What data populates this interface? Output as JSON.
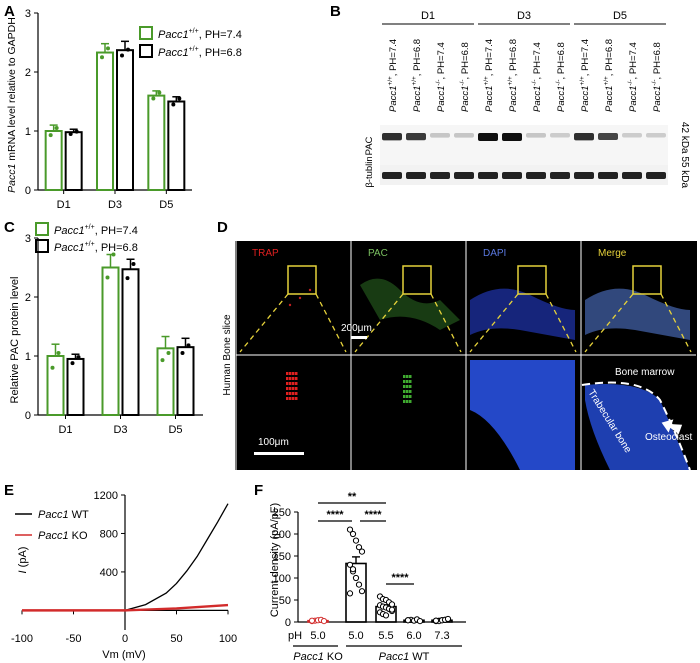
{
  "colors": {
    "green": "#4a9a2a",
    "black": "#000000",
    "red": "#d22b2b",
    "yellow": "#e6d23a",
    "trap_red": "#e02020",
    "pac_green": "#3faa30",
    "dapi_blue": "#2448c8"
  },
  "panel_letters": [
    "A",
    "B",
    "C",
    "D",
    "E",
    "F"
  ],
  "panelA": {
    "ylabel_italic": "Pacc1",
    "ylabel_rest": " mRNA level relative to GAPDH",
    "legend": [
      {
        "italic": "Pacc1",
        "sup": "+/+",
        "rest": ", PH=7.4"
      },
      {
        "italic": "Pacc1",
        "sup": "+/+",
        "rest": ", PH=6.8"
      }
    ]
  },
  "panelB": {
    "groups": [
      "D1",
      "D3",
      "D5"
    ],
    "lanes": [
      {
        "g": "Pacc1",
        "s": "+/+",
        "p": ", PH=7.4"
      },
      {
        "g": "Pacc1",
        "s": "+/+",
        "p": ", PH=6.8"
      },
      {
        "g": "Pacc1",
        "s": "-/-",
        "p": ", PH=7.4"
      },
      {
        "g": "Pacc1",
        "s": "-/-",
        "p": ", PH=6.8"
      },
      {
        "g": "Pacc1",
        "s": "+/+",
        "p": ", PH=7.4"
      },
      {
        "g": "Pacc1",
        "s": "+/+",
        "p": ", PH=6.8"
      },
      {
        "g": "Pacc1",
        "s": "-/-",
        "p": ", PH=7.4"
      },
      {
        "g": "Pacc1",
        "s": "-/-",
        "p": ", PH=6.8"
      },
      {
        "g": "Pacc1",
        "s": "+/+",
        "p": ", PH=7.4"
      },
      {
        "g": "Pacc1",
        "s": "+/+",
        "p": ", PH=6.8"
      },
      {
        "g": "Pacc1",
        "s": "-/-",
        "p": ", PH=7.4"
      },
      {
        "g": "Pacc1",
        "s": "-/-",
        "p": ", PH=6.8"
      }
    ],
    "row_labels": [
      "PAC",
      "β-tublin"
    ],
    "kda": [
      "42 kDa",
      "55 kDa"
    ],
    "pac_intensity": [
      0.85,
      0.8,
      0.15,
      0.15,
      1.0,
      1.0,
      0.15,
      0.12,
      0.85,
      0.75,
      0.12,
      0.12
    ]
  },
  "panelC": {
    "ylabel": "Relative PAC protein level",
    "legend": [
      {
        "italic": "Pacc1",
        "sup": "+/+",
        "rest": ", PH=7.4"
      },
      {
        "italic": "Pacc1",
        "sup": "+/+",
        "rest": ", PH=6.8"
      }
    ]
  },
  "panelD": {
    "channels": [
      "TRAP",
      "PAC",
      "DAPI",
      "Merge"
    ],
    "side_label": "Human Bone slice",
    "scale_top": "200μm",
    "scale_bottom": "100μm",
    "annotations": {
      "bone_marrow": "Bone marrow",
      "trabecular": "Trabecular bone",
      "osteoclast": "Osteoclast"
    }
  },
  "panelE": {
    "ylabel_italic": "I",
    "ylabel_rest": " (pA)",
    "xlabel": "Vm (mV)",
    "legend": [
      {
        "italic": "Pacc1",
        "rest": " WT"
      },
      {
        "italic": "Pacc1",
        "rest": " KO"
      }
    ]
  },
  "panelF": {
    "ylabel": "Current density (pA/pF)",
    "ph_label": "pH",
    "group_labels": [
      {
        "italic": "Pacc1",
        "rest": " KO"
      },
      {
        "italic": "Pacc1",
        "rest": " WT"
      }
    ],
    "sig": [
      "****",
      "**",
      "****",
      "****"
    ]
  },
  "chart_data": [
    {
      "type": "bar",
      "panel": "A",
      "categories": [
        "D1",
        "D3",
        "D5"
      ],
      "series": [
        {
          "name": "Pacc1+/+, PH=7.4",
          "values": [
            1.0,
            2.33,
            1.6
          ],
          "errors": [
            0.1,
            0.15,
            0.08
          ],
          "points": [
            [
              0.93,
              1.05
            ],
            [
              2.25,
              2.4
            ],
            [
              1.55,
              1.65
            ]
          ]
        },
        {
          "name": "Pacc1+/+, PH=6.8",
          "values": [
            0.98,
            2.37,
            1.5
          ],
          "errors": [
            0.05,
            0.15,
            0.08
          ],
          "points": [
            [
              0.95,
              0.99
            ],
            [
              2.28,
              2.38
            ],
            [
              1.45,
              1.55
            ]
          ]
        }
      ],
      "ylabel": "Pacc1 mRNA level relative to GAPDH",
      "ylim": [
        0,
        3
      ],
      "yticks": [
        0,
        1,
        2,
        3
      ]
    },
    {
      "type": "bar",
      "panel": "C",
      "categories": [
        "D1",
        "D3",
        "D5"
      ],
      "series": [
        {
          "name": "Pacc1+/+, PH=7.4",
          "values": [
            1.0,
            2.5,
            1.13
          ],
          "errors": [
            0.2,
            0.22,
            0.2
          ],
          "points": [
            [
              0.8,
              1.05
            ],
            [
              2.33,
              2.72
            ],
            [
              0.93,
              1.05
            ]
          ]
        },
        {
          "name": "Pacc1+/+, PH=6.8",
          "values": [
            0.95,
            2.47,
            1.15
          ],
          "errors": [
            0.08,
            0.17,
            0.15
          ],
          "points": [
            [
              0.88,
              0.98
            ],
            [
              2.32,
              2.56
            ],
            [
              1.05,
              1.18
            ]
          ]
        }
      ],
      "ylabel": "Relative PAC protein level",
      "ylim": [
        0,
        3
      ],
      "yticks": [
        0,
        1,
        2,
        3
      ]
    },
    {
      "type": "line",
      "panel": "E",
      "xlabel": "Vm (mV)",
      "ylabel": "I (pA)",
      "xlim": [
        -100,
        100
      ],
      "ylim": [
        -100,
        1200
      ],
      "xticks": [
        -100,
        -50,
        0,
        50,
        100
      ],
      "yticks": [
        400,
        800,
        1200
      ],
      "series": [
        {
          "name": "Pacc1 WT",
          "x": [
            -100,
            -50,
            0,
            20,
            40,
            50,
            60,
            70,
            80,
            90,
            100
          ],
          "y": [
            0,
            0,
            0,
            60,
            180,
            280,
            410,
            560,
            740,
            920,
            1110
          ]
        },
        {
          "name": "Pacc1 KO",
          "x": [
            -100,
            -50,
            0,
            50,
            100
          ],
          "y": [
            0,
            0,
            0,
            20,
            55
          ]
        }
      ]
    },
    {
      "type": "bar",
      "panel": "F",
      "categories": [
        "5.0",
        "5.0",
        "5.5",
        "6.0",
        "7.3"
      ],
      "values": [
        3,
        133,
        35,
        4,
        4
      ],
      "errors": [
        1,
        15,
        4,
        1,
        1
      ],
      "points": [
        [
          2,
          3,
          4,
          5,
          2,
          3
        ],
        [
          210,
          200,
          185,
          170,
          160,
          130,
          115,
          100,
          85,
          70,
          65,
          120
        ],
        [
          58,
          52,
          50,
          45,
          40,
          38,
          35,
          33,
          30,
          25,
          22,
          18,
          15,
          30,
          28
        ],
        [
          4,
          5,
          3,
          6,
          2,
          4
        ],
        [
          2,
          3,
          4,
          5,
          6,
          3,
          2,
          4,
          5,
          7,
          3
        ]
      ],
      "ylabel": "Current density (pA/pF)",
      "ylim": [
        0,
        250
      ],
      "yticks": [
        0,
        50,
        100,
        150,
        200,
        250
      ],
      "groups": [
        "Pacc1 KO",
        "Pacc1 WT"
      ],
      "significance": [
        "****",
        "**",
        "****",
        "****"
      ]
    }
  ]
}
